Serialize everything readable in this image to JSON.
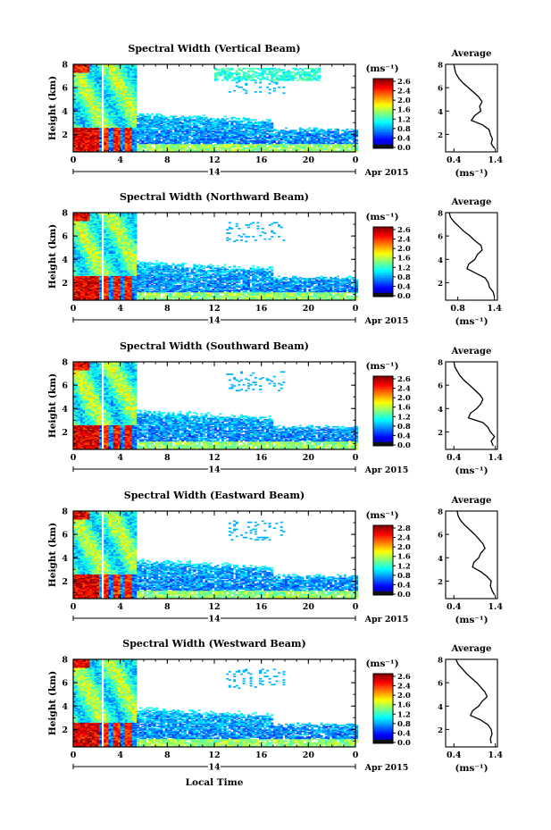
{
  "figure": {
    "xlabel": "Local Time",
    "ylabel": "Height (km)",
    "date_day": "14",
    "date_label": "Apr 2015",
    "average_title": "Average",
    "colorbar_unit": "(ms⁻¹)"
  },
  "chart_data": [
    {
      "type": "heatmap",
      "title": "Spectral Width (Vertical Beam)",
      "xlabel": "",
      "ylabel": "Height (km)",
      "x_ticks": [
        "0",
        "4",
        "8",
        "12",
        "16",
        "20",
        "0"
      ],
      "xlim": [
        0,
        24
      ],
      "y_ticks": [
        "2",
        "4",
        "6",
        "8"
      ],
      "ylim": [
        0.5,
        8.0
      ],
      "colorbar_ticks": [
        "2.6",
        "2.4",
        "2.0",
        "1.6",
        "1.2",
        "0.8",
        "0.4",
        "0.0"
      ],
      "colorbar_range": [
        0.0,
        2.8
      ],
      "average": {
        "title": "Average",
        "xlabel": "(ms⁻¹)",
        "x_ticks": [
          "0.4",
          "1.4"
        ],
        "xlim": [
          0.2,
          1.45
        ],
        "ylim": [
          0.5,
          8.0
        ],
        "height_km": [
          0.8,
          1.2,
          1.6,
          2.0,
          2.4,
          2.8,
          3.2,
          3.6,
          4.0,
          4.4,
          4.8,
          5.2,
          5.6,
          6.0,
          6.4,
          6.8,
          7.2,
          7.6,
          8.0
        ],
        "value": [
          1.38,
          1.3,
          1.33,
          1.28,
          1.25,
          1.1,
          0.82,
          0.9,
          1.05,
          1.02,
          1.08,
          1.0,
          0.88,
          0.75,
          0.62,
          0.52,
          0.45,
          0.42,
          0.4
        ]
      }
    },
    {
      "type": "heatmap",
      "title": "Spectral Width (Northward Beam)",
      "xlabel": "",
      "ylabel": "Height (km)",
      "x_ticks": [
        "0",
        "4",
        "8",
        "12",
        "16",
        "20",
        "0"
      ],
      "xlim": [
        0,
        24
      ],
      "y_ticks": [
        "2",
        "4",
        "6",
        "8"
      ],
      "ylim": [
        0.5,
        8.0
      ],
      "colorbar_ticks": [
        "2.6",
        "2.4",
        "2.0",
        "1.6",
        "1.2",
        "0.8",
        "0.4",
        "0.0"
      ],
      "colorbar_range": [
        0.0,
        2.8
      ],
      "average": {
        "title": "Average",
        "xlabel": "(ms⁻¹)",
        "x_ticks": [
          "0.8",
          "1.4"
        ],
        "xlim": [
          0.6,
          1.45
        ],
        "ylim": [
          0.5,
          8.0
        ],
        "height_km": [
          0.8,
          1.2,
          1.6,
          2.0,
          2.4,
          2.8,
          3.2,
          3.6,
          4.0,
          4.4,
          4.8,
          5.2,
          5.6,
          6.0,
          6.4,
          6.8,
          7.2,
          7.6,
          8.0
        ],
        "value": [
          1.4,
          1.38,
          1.32,
          1.3,
          1.25,
          1.1,
          0.95,
          0.98,
          1.08,
          1.12,
          1.2,
          1.18,
          1.08,
          1.0,
          0.9,
          0.82,
          0.74,
          0.68,
          0.66
        ]
      }
    },
    {
      "type": "heatmap",
      "title": "Spectral Width (Southward Beam)",
      "xlabel": "",
      "ylabel": "Height (km)",
      "x_ticks": [
        "0",
        "4",
        "8",
        "12",
        "16",
        "20",
        "0"
      ],
      "xlim": [
        0,
        24
      ],
      "y_ticks": [
        "2",
        "4",
        "6",
        "8"
      ],
      "ylim": [
        0.5,
        8.0
      ],
      "colorbar_ticks": [
        "2.6",
        "2.4",
        "2.0",
        "1.6",
        "1.2",
        "0.8",
        "0.4",
        "0.0"
      ],
      "colorbar_range": [
        0.0,
        2.8
      ],
      "average": {
        "title": "Average",
        "xlabel": "(ms⁻¹)",
        "x_ticks": [
          "0.4",
          "1.4"
        ],
        "xlim": [
          0.2,
          1.45
        ],
        "ylim": [
          0.5,
          8.0
        ],
        "height_km": [
          0.8,
          1.2,
          1.6,
          2.0,
          2.4,
          2.8,
          3.2,
          3.6,
          4.0,
          4.4,
          4.8,
          5.2,
          5.6,
          6.0,
          6.4,
          6.8,
          7.2,
          7.6,
          8.0
        ],
        "value": [
          1.35,
          1.3,
          1.38,
          1.28,
          1.22,
          1.1,
          0.75,
          0.8,
          0.95,
          1.05,
          1.1,
          1.02,
          0.9,
          0.78,
          0.65,
          0.55,
          0.48,
          0.42,
          0.4
        ]
      }
    },
    {
      "type": "heatmap",
      "title": "Spectral Width (Eastward Beam)",
      "xlabel": "",
      "ylabel": "Height (km)",
      "x_ticks": [
        "0",
        "4",
        "8",
        "12",
        "16",
        "20",
        "0"
      ],
      "xlim": [
        0,
        24
      ],
      "y_ticks": [
        "2",
        "4",
        "6",
        "8"
      ],
      "ylim": [
        0.5,
        8.0
      ],
      "colorbar_ticks": [
        "2.8",
        "2.4",
        "2.0",
        "1.6",
        "1.2",
        "0.8",
        "0.4",
        "0.0"
      ],
      "colorbar_range": [
        0.0,
        2.8
      ],
      "average": {
        "title": "Average",
        "xlabel": "(ms⁻¹)",
        "x_ticks": [
          "0.4",
          "1.4"
        ],
        "xlim": [
          0.2,
          1.45
        ],
        "ylim": [
          0.5,
          8.0
        ],
        "height_km": [
          0.8,
          1.2,
          1.6,
          2.0,
          2.4,
          2.8,
          3.2,
          3.6,
          4.0,
          4.4,
          4.8,
          5.2,
          5.6,
          6.0,
          6.4,
          6.8,
          7.2,
          7.6,
          8.0
        ],
        "value": [
          1.38,
          1.32,
          1.28,
          1.3,
          1.2,
          1.05,
          0.85,
          0.88,
          1.0,
          1.05,
          1.15,
          1.1,
          1.0,
          0.9,
          0.78,
          0.66,
          0.56,
          0.5,
          0.48
        ]
      }
    },
    {
      "type": "heatmap",
      "title": "Spectral Width (Westward Beam)",
      "xlabel": "Local Time",
      "ylabel": "Height (km)",
      "x_ticks": [
        "0",
        "4",
        "8",
        "12",
        "16",
        "20",
        "0"
      ],
      "xlim": [
        0,
        24
      ],
      "y_ticks": [
        "2",
        "4",
        "6",
        "8"
      ],
      "ylim": [
        0.5,
        8.0
      ],
      "colorbar_ticks": [
        "2.6",
        "2.4",
        "2.0",
        "1.6",
        "1.2",
        "0.8",
        "0.4",
        "0.0"
      ],
      "colorbar_range": [
        0.0,
        2.8
      ],
      "average": {
        "title": "Average",
        "xlabel": "(ms⁻¹)",
        "x_ticks": [
          "0.4",
          "1.4"
        ],
        "xlim": [
          0.2,
          1.45
        ],
        "ylim": [
          0.5,
          8.0
        ],
        "height_km": [
          0.8,
          1.2,
          1.6,
          2.0,
          2.4,
          2.8,
          3.2,
          3.6,
          4.0,
          4.4,
          4.8,
          5.2,
          5.6,
          6.0,
          6.4,
          6.8,
          7.2,
          7.6,
          8.0
        ],
        "value": [
          1.3,
          1.28,
          1.32,
          1.3,
          1.22,
          1.05,
          0.8,
          0.85,
          1.0,
          1.08,
          1.2,
          1.15,
          1.05,
          0.95,
          0.82,
          0.7,
          0.6,
          0.5,
          0.45
        ]
      }
    }
  ]
}
